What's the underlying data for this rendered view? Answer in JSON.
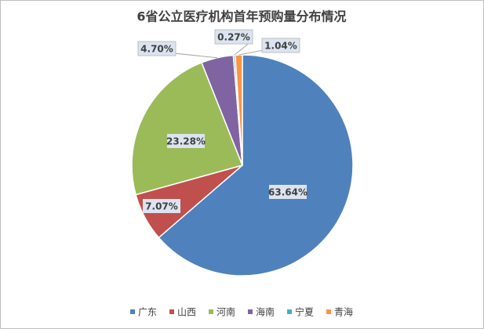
{
  "chart_data": {
    "type": "pie",
    "title": "6省公立医疗机构首年预购量分布情况",
    "categories": [
      "广东",
      "山西",
      "河南",
      "海南",
      "宁夏",
      "青海"
    ],
    "values": [
      63.64,
      7.07,
      23.28,
      4.7,
      0.27,
      1.04
    ],
    "value_labels": [
      "63.64%",
      "7.07%",
      "23.28%",
      "4.70%",
      "0.27%",
      "1.04%"
    ],
    "colors": [
      "#4f81bd",
      "#c0504d",
      "#9bbb59",
      "#8064a2",
      "#4bacc6",
      "#f79646"
    ],
    "legend": "bottom"
  }
}
